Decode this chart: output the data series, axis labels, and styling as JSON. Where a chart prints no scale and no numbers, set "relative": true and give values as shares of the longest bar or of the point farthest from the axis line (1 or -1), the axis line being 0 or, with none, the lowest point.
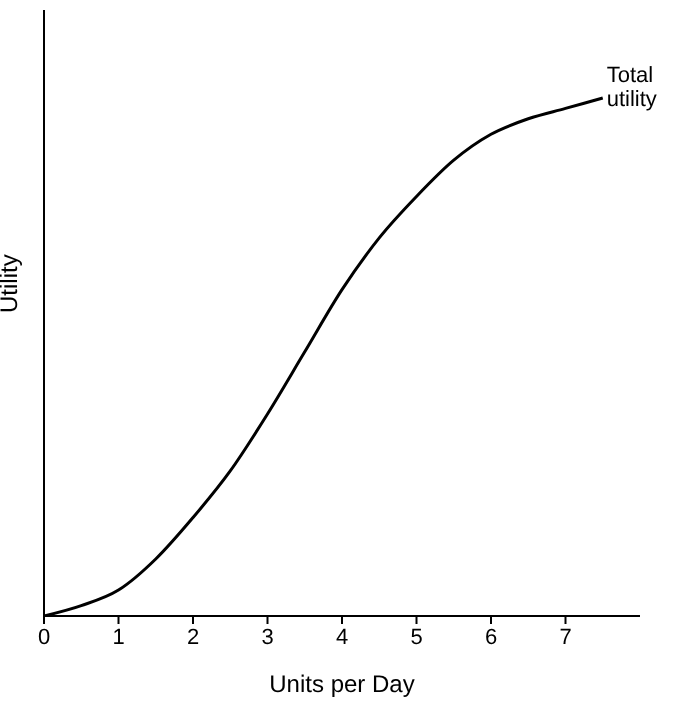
{
  "chart_data": {
    "type": "line",
    "relative": true,
    "xlabel": "Units per Day",
    "ylabel": "Utility",
    "x": [
      0,
      0.5,
      1,
      1.5,
      2,
      2.5,
      3,
      3.5,
      4,
      4.5,
      5,
      5.5,
      6,
      6.5,
      7,
      7.5
    ],
    "series": [
      {
        "color": "#000000",
        "values": [
          0,
          0.02,
          0.05,
          0.11,
          0.19,
          0.28,
          0.39,
          0.51,
          0.63,
          0.73,
          0.81,
          0.88,
          0.93,
          0.96,
          0.98,
          1
        ]
      }
    ],
    "xlim": [
      0,
      8
    ],
    "xticks": [
      0,
      1,
      2,
      3,
      4,
      5,
      6,
      7
    ],
    "grid": false,
    "legend": false,
    "marker": "none",
    "line_style": "solid",
    "annotations": [
      {
        "text": "Total utility",
        "x": 7.5,
        "y": 1
      }
    ]
  }
}
